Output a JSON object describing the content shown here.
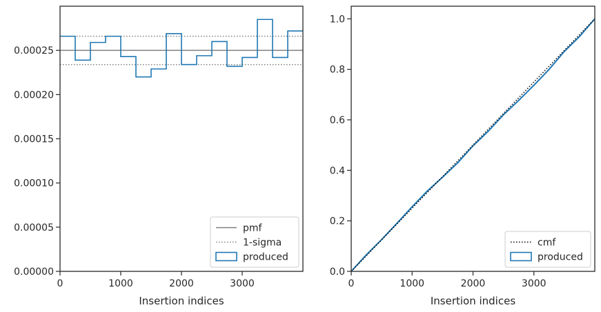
{
  "chart_data": [
    {
      "type": "step-histogram",
      "title": "",
      "xlabel": "Insertion indices",
      "ylabel": "",
      "xlim": [
        0,
        4000
      ],
      "ylim": [
        0,
        0.0003
      ],
      "xticks": [
        0,
        1000,
        2000,
        3000
      ],
      "yticks": [
        0,
        5e-05,
        0.0001,
        0.00015,
        0.0002,
        0.00025
      ],
      "xtick_labels": [
        "0",
        "1000",
        "2000",
        "3000"
      ],
      "ytick_labels": [
        "0.00000",
        "0.00005",
        "0.00010",
        "0.00015",
        "0.00020",
        "0.00025"
      ],
      "legend_loc": "lower right",
      "reference_lines": [
        {
          "name": "pmf",
          "style": "solid",
          "color": "#808080",
          "y": 0.00025
        },
        {
          "name": "1-sigma",
          "style": "dotted",
          "color": "#808080",
          "y": [
            0.000234,
            0.000266
          ]
        }
      ],
      "series": [
        {
          "name": "produced",
          "color": "#1f77b4",
          "bin_edges": [
            0,
            250,
            500,
            750,
            1000,
            1250,
            1500,
            1750,
            2000,
            2250,
            2500,
            2750,
            3000,
            3250,
            3500,
            3750,
            4000
          ],
          "values": [
            0.000266,
            0.000239,
            0.000259,
            0.000266,
            0.000243,
            0.00022,
            0.000229,
            0.000269,
            0.000234,
            0.000244,
            0.00026,
            0.000232,
            0.000242,
            0.000285,
            0.000242,
            0.000272
          ]
        }
      ],
      "legend": [
        "pmf",
        "1-sigma",
        "produced"
      ]
    },
    {
      "type": "line",
      "title": "",
      "xlabel": "Insertion indices",
      "ylabel": "",
      "xlim": [
        0,
        4000
      ],
      "ylim": [
        0,
        1.05
      ],
      "xticks": [
        0,
        1000,
        2000,
        3000
      ],
      "yticks": [
        0,
        0.2,
        0.4,
        0.6,
        0.8,
        1.0
      ],
      "xtick_labels": [
        "0",
        "1000",
        "2000",
        "3000"
      ],
      "ytick_labels": [
        "0.0",
        "0.2",
        "0.4",
        "0.6",
        "0.8",
        "1.0"
      ],
      "legend_loc": "lower right",
      "series": [
        {
          "name": "cmf",
          "style": "dotted",
          "color": "#000000",
          "x": [
            0,
            4000
          ],
          "y": [
            0,
            1.0
          ]
        },
        {
          "name": "produced",
          "style": "solid",
          "color": "#1f77b4",
          "x": [
            0,
            250,
            500,
            750,
            1000,
            1250,
            1500,
            1750,
            2000,
            2250,
            2500,
            2750,
            3000,
            3250,
            3500,
            3750,
            4000
          ],
          "y": [
            0,
            0.066,
            0.126,
            0.19,
            0.256,
            0.318,
            0.373,
            0.43,
            0.497,
            0.555,
            0.62,
            0.677,
            0.737,
            0.8,
            0.871,
            0.93,
            1.0
          ]
        }
      ],
      "legend": [
        "cmf",
        "produced"
      ]
    }
  ]
}
